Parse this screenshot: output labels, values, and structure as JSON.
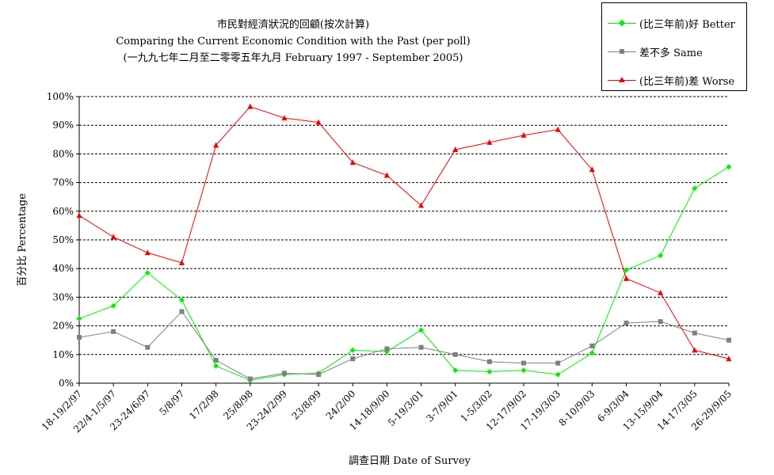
{
  "title": {
    "line1": "市民對經濟狀況的回顧(按次計算)",
    "line2": "Comparing the Current Economic Condition with the Past  (per poll)",
    "line3": "(一九九七年二月至二零零五年九月 February 1997 - September 2005)"
  },
  "colors": {
    "better": "#00ee00",
    "same": "#808080",
    "worse": "#ee0000",
    "grid": "#000000"
  },
  "chart_data": {
    "type": "line",
    "xlabel": "調查日期 Date of Survey",
    "ylabel": "百分比 Percentage",
    "ylim": [
      0,
      100
    ],
    "y_ticks": [
      "0%",
      "10%",
      "20%",
      "30%",
      "40%",
      "50%",
      "60%",
      "70%",
      "80%",
      "90%",
      "100%"
    ],
    "grid": true,
    "legend_position": "top-right",
    "categories": [
      "18-19/2/97",
      "22/4-1/5/97",
      "23-24/6/97",
      "5/8/97",
      "17/2/98",
      "25/8/98",
      "23-24/2/99",
      "23/8/99",
      "24/2/00",
      "14-18/9/00",
      "5-19/3/01",
      "3-7/9/01",
      "1-5/3/02",
      "12-17/9/02",
      "17-19/3/03",
      "8-10/9/03",
      "6-9/3/04",
      "13-15/9/04",
      "14-17/3/05",
      "26-29/9/05"
    ],
    "series": [
      {
        "name": "(比三年前)好 Better",
        "marker": "diamond",
        "color_key": "better",
        "values": [
          22.5,
          27,
          38.5,
          29,
          6,
          1,
          3,
          3.5,
          11.5,
          11,
          18.5,
          4.5,
          4,
          4.5,
          3,
          10.5,
          39.5,
          44.5,
          68,
          75.5
        ]
      },
      {
        "name": "差不多 Same",
        "marker": "square",
        "color_key": "same",
        "values": [
          16,
          18,
          12.5,
          25,
          8,
          1.5,
          3.5,
          3,
          8.5,
          12,
          12.5,
          10,
          7.5,
          7,
          7,
          13,
          21,
          21.5,
          17.5,
          15
        ]
      },
      {
        "name": "(比三年前)差 Worse",
        "marker": "triangle",
        "color_key": "worse",
        "values": [
          58.5,
          51,
          45.5,
          42,
          83,
          96.5,
          92.5,
          91,
          77,
          72.5,
          62,
          81.5,
          84,
          86.5,
          88.5,
          74.5,
          36.5,
          31.5,
          11.5,
          8.5
        ]
      }
    ]
  }
}
